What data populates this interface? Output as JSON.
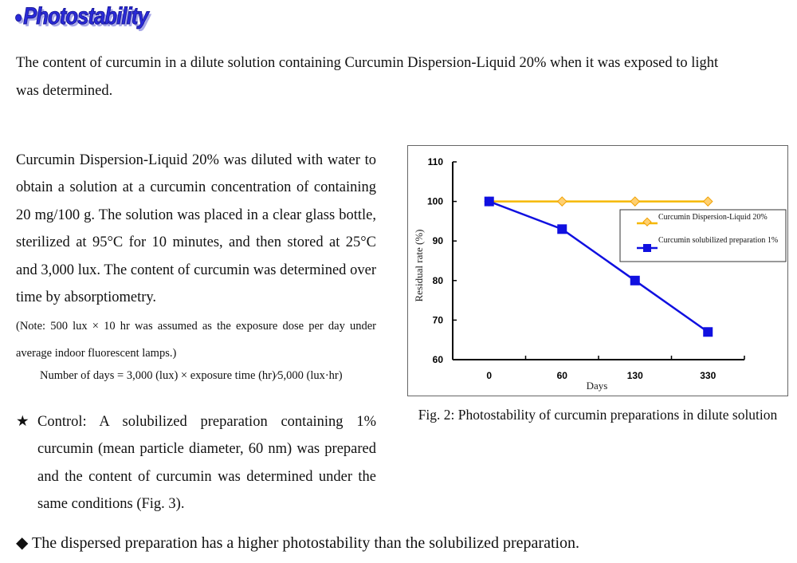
{
  "title": "Photostability",
  "intro": "The content of curcumin in a dilute solution containing Curcumin Dispersion-Liquid 20% when it was exposed to light was determined.",
  "body": "Curcumin Dispersion-Liquid 20% was diluted with water to obtain a solution at a curcumin concentration of containing 20 mg/100 g. The solution was placed in a clear glass bottle, sterilized at 95°C for 10 minutes, and then stored at 25°C and 3,000 lux. The content of curcumin was determined over time by absorptiometry.",
  "note": "(Note: 500 lux × 10 hr was assumed as the exposure dose per day under average indoor fluorescent lamps.)",
  "formula": "Number of days = 3,000 (lux) × exposure time (hr)∕5,000 (lux·hr)",
  "control_marker": "★",
  "control": "Control: A solubilized preparation containing 1% curcumin (mean particle diameter, 60 nm) was prepared and the content of curcumin was determined under the same conditions (Fig. 3).",
  "conclusion_marker": "◆",
  "conclusion": "The dispersed preparation has a higher photostability than the solubilized preparation.",
  "caption": "Fig. 2: Photostability of curcumin preparations in dilute solution",
  "chart_data": {
    "type": "line",
    "categories": [
      "0",
      "60",
      "130",
      "330"
    ],
    "xlabel": "Days",
    "ylabel": "Residual rate (%)",
    "ylim": [
      60,
      110
    ],
    "yticks": [
      "60",
      "70",
      "80",
      "90",
      "100",
      "110"
    ],
    "grid": false,
    "legend": "right",
    "series": [
      {
        "name": "Curcumin Dispersion-Liquid 20%",
        "values": [
          100,
          100,
          100,
          100
        ],
        "color": "#f5b800",
        "marker": "diamond"
      },
      {
        "name": "Curcumin solubilized preparation 1%",
        "values": [
          100,
          93,
          80,
          67
        ],
        "color": "#1010e0",
        "marker": "square"
      }
    ]
  }
}
